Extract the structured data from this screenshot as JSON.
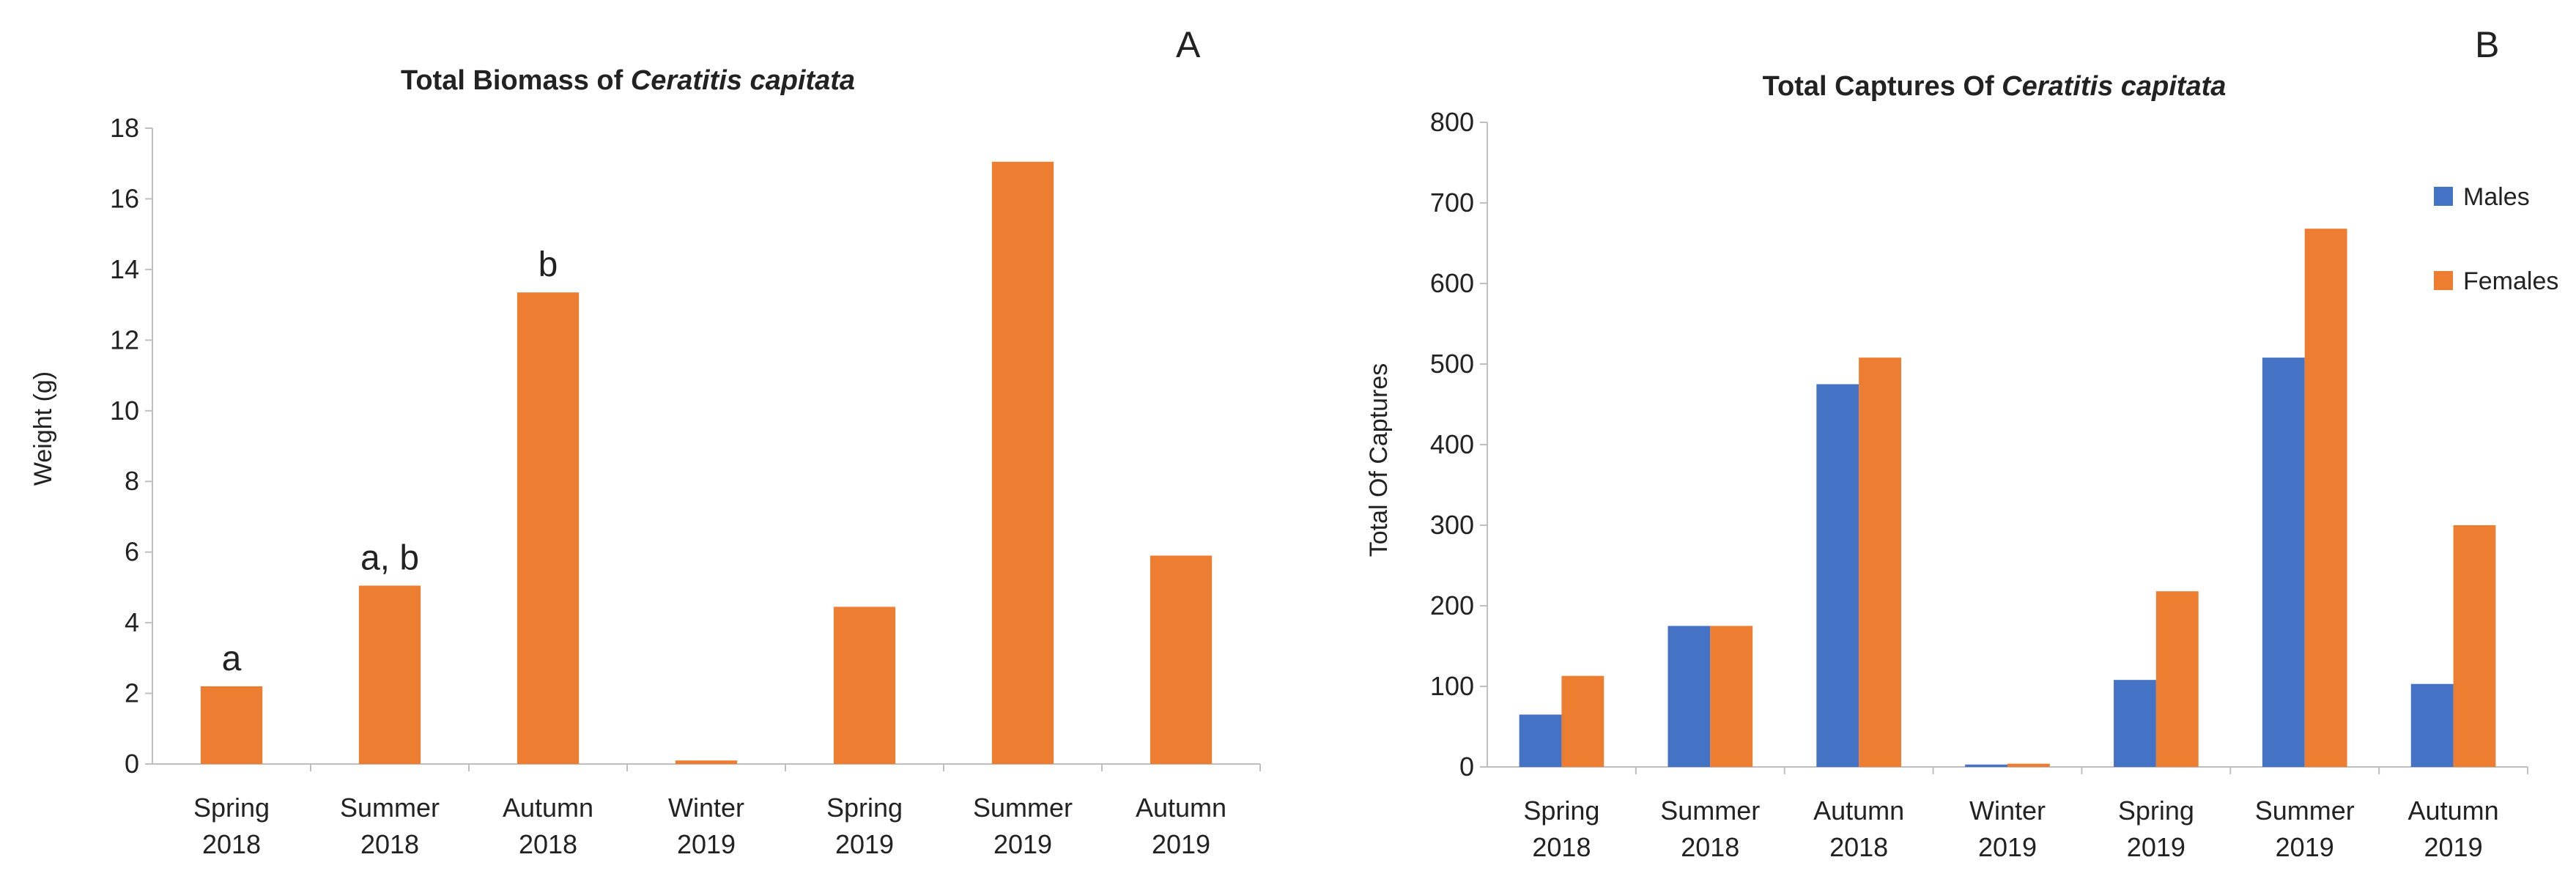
{
  "chart_data": [
    {
      "type": "bar",
      "panel_label": "A",
      "title_prefix": "Total Biomass of ",
      "title_species": "Ceratitis capitata",
      "ylabel": "Weight (g)",
      "xlabel": "",
      "ylim": [
        0,
        18
      ],
      "yticks": [
        0,
        2,
        4,
        6,
        8,
        10,
        12,
        14,
        16,
        18
      ],
      "grid": false,
      "categories": [
        [
          "Spring",
          "2018"
        ],
        [
          "Summer",
          "2018"
        ],
        [
          "Autumn",
          "2018"
        ],
        [
          "Winter",
          "2019"
        ],
        [
          "Spring",
          "2019"
        ],
        [
          "Summer",
          "2019"
        ],
        [
          "Autumn",
          "2019"
        ]
      ],
      "series": [
        {
          "name": "Biomass",
          "color": "#ED7D31",
          "values": [
            2.2,
            5.05,
            13.35,
            0.1,
            4.45,
            17.05,
            5.9
          ]
        }
      ],
      "annotations": [
        "a",
        "a, b",
        "b",
        "",
        "",
        "",
        ""
      ]
    },
    {
      "type": "bar",
      "panel_label": "B",
      "title_prefix": "Total Captures Of ",
      "title_species": "Ceratitis capitata",
      "ylabel": "Total Of Captures",
      "xlabel": "",
      "ylim": [
        0,
        800
      ],
      "yticks": [
        0,
        100,
        200,
        300,
        400,
        500,
        600,
        700,
        800
      ],
      "grid": false,
      "legend_position": "right",
      "categories": [
        [
          "Spring",
          "2018"
        ],
        [
          "Summer",
          "2018"
        ],
        [
          "Autumn",
          "2018"
        ],
        [
          "Winter",
          "2019"
        ],
        [
          "Spring",
          "2019"
        ],
        [
          "Summer",
          "2019"
        ],
        [
          "Autumn",
          "2019"
        ]
      ],
      "series": [
        {
          "name": "Males",
          "color": "#4472C4",
          "values": [
            65,
            175,
            475,
            3,
            108,
            508,
            103
          ]
        },
        {
          "name": "Females",
          "color": "#ED7D31",
          "values": [
            113,
            175,
            508,
            4,
            218,
            668,
            300
          ]
        }
      ]
    }
  ]
}
